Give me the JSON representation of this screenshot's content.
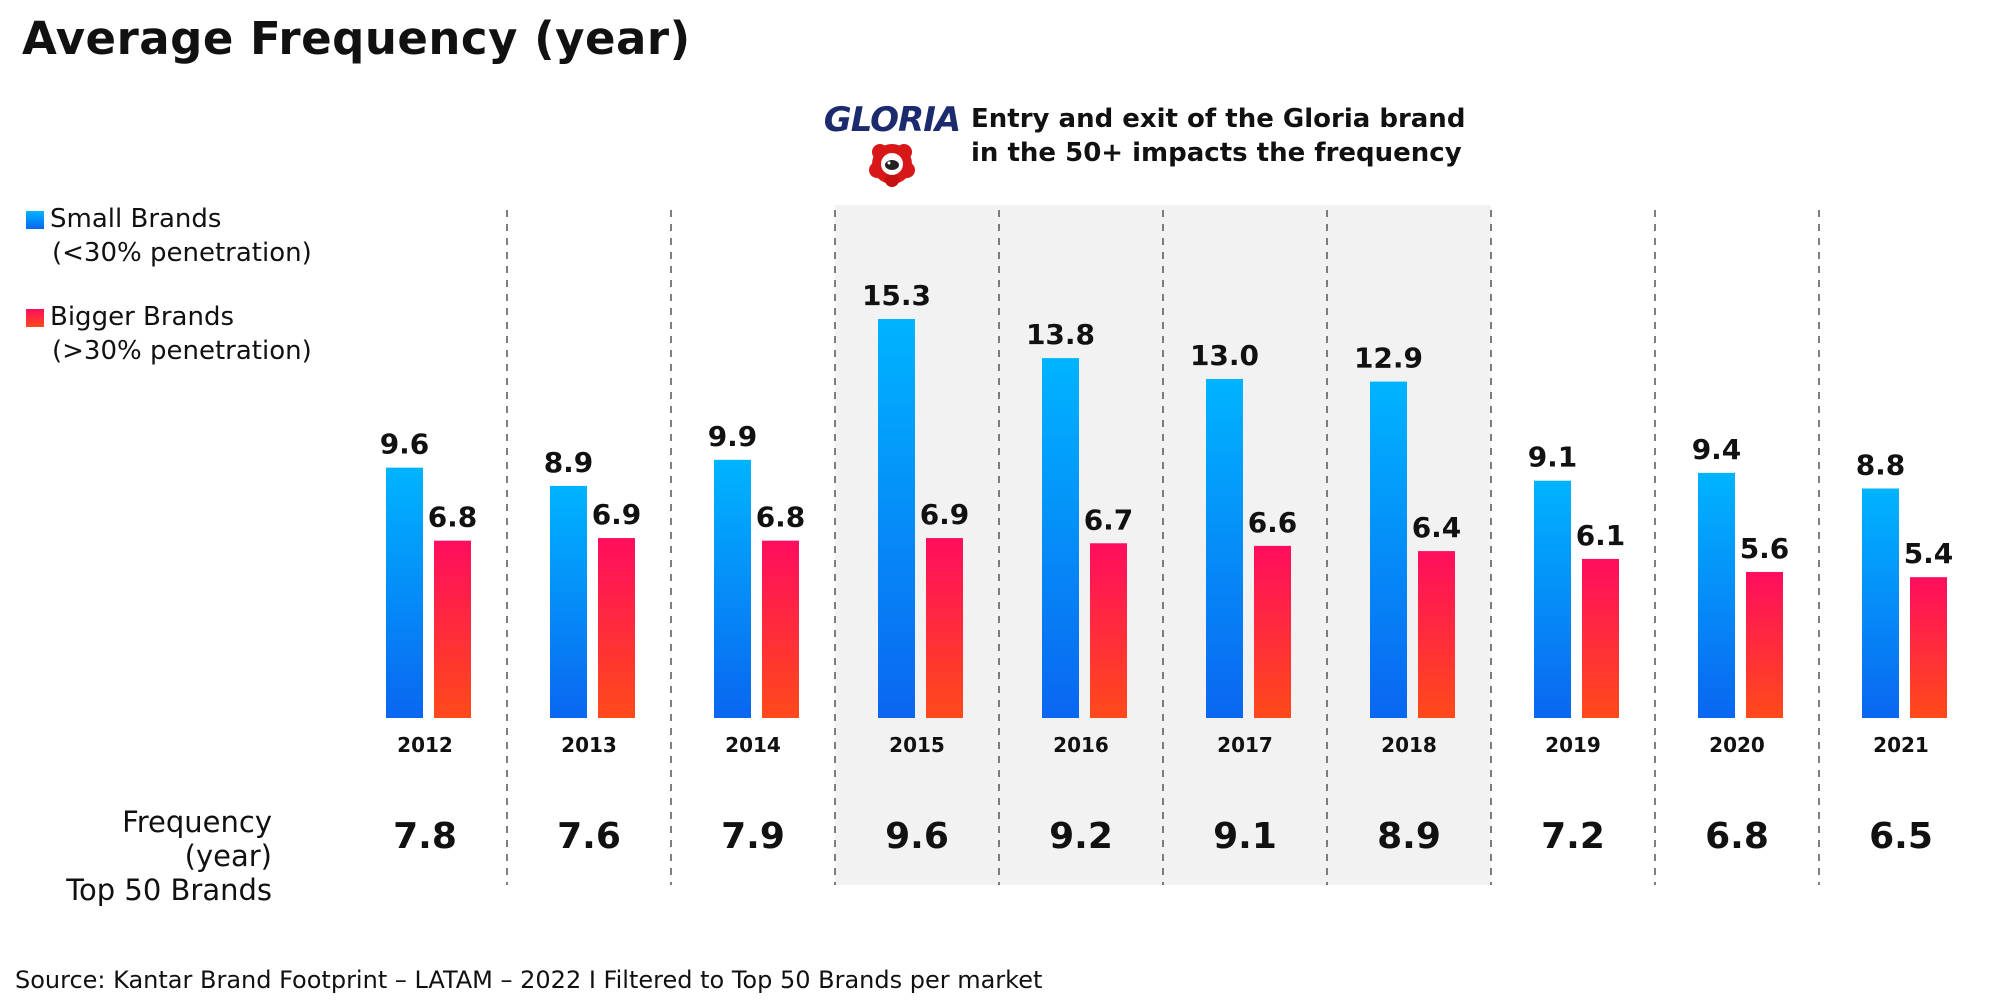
{
  "title": "Average Frequency (year)",
  "annotation": {
    "logo_text": "GLORIA",
    "line1": "Entry and exit of the Gloria brand",
    "line2": "in the 50+ impacts the frequency"
  },
  "legend": {
    "small": {
      "label": "Small Brands",
      "sub": "(<30% penetration)"
    },
    "big": {
      "label": "Bigger Brands",
      "sub": "(>30% penetration)"
    }
  },
  "row_label": {
    "line1": "Frequency (year)",
    "line2": "Top 50 Brands"
  },
  "source": "Source: Kantar Brand Footprint – LATAM – 2022 I Filtered to Top 50 Brands per market",
  "colors": {
    "small_top": "#00b4ff",
    "small_bottom": "#0a66f0",
    "big_top": "#ff0d5e",
    "big_bottom": "#ff4a1a",
    "highlight_band": "#f2f2f2",
    "divider": "#555555",
    "text": "#111111"
  },
  "chart_data": {
    "type": "bar",
    "categories": [
      "2012",
      "2013",
      "2014",
      "2015",
      "2016",
      "2017",
      "2018",
      "2019",
      "2020",
      "2021"
    ],
    "series": [
      {
        "name": "Small Brands",
        "values": [
          9.6,
          8.9,
          9.9,
          15.3,
          13.8,
          13.0,
          12.9,
          9.1,
          9.4,
          8.8
        ],
        "labels": [
          "9.6",
          "8.9",
          "9.9",
          "15.3",
          "13.8",
          "13.0",
          "12.9",
          "9.1",
          "9.4",
          "8.8"
        ]
      },
      {
        "name": "Bigger Brands",
        "values": [
          6.8,
          6.9,
          6.8,
          6.9,
          6.7,
          6.6,
          6.4,
          6.1,
          5.6,
          5.4
        ],
        "labels": [
          "6.8",
          "6.9",
          "6.8",
          "6.9",
          "6.7",
          "6.6",
          "6.4",
          "6.1",
          "5.6",
          "5.4"
        ]
      }
    ],
    "top50_frequency": {
      "values": [
        7.8,
        7.6,
        7.9,
        9.6,
        9.2,
        9.1,
        8.9,
        7.2,
        6.8,
        6.5
      ],
      "labels": [
        "7.8",
        "7.6",
        "7.9",
        "9.6",
        "9.2",
        "9.1",
        "8.9",
        "7.2",
        "6.8",
        "6.5"
      ]
    },
    "highlighted_categories": [
      "2015",
      "2016",
      "2017",
      "2018"
    ],
    "ylim": [
      0,
      15.3
    ],
    "grid": false,
    "legend_position": "left"
  }
}
